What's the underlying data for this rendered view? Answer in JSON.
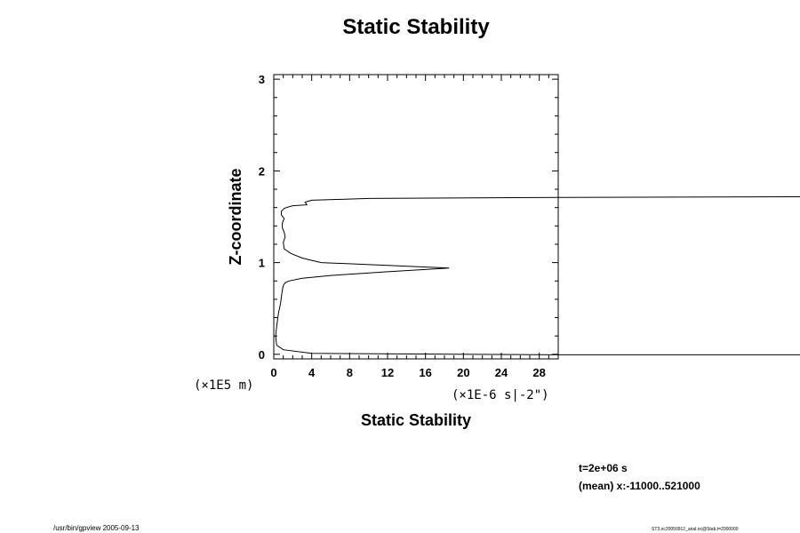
{
  "chart_data": {
    "type": "line",
    "title": "Static Stability",
    "xlabel": "Static Stability",
    "ylabel": "Z-coordinate",
    "x_unit": "(×1E-6 s|-2\")",
    "y_unit": "(×1E5 m)",
    "xlim": [
      0,
      30
    ],
    "ylim": [
      -0.05,
      3.05
    ],
    "x_ticks": [
      "0",
      "4",
      "8",
      "12",
      "16",
      "20",
      "24",
      "28"
    ],
    "y_ticks": [
      "0",
      "1",
      "2",
      "3"
    ],
    "grid": false,
    "series": [
      {
        "x": [
          60.0,
          30.0,
          4.0,
          1.0,
          0.3,
          0.2,
          0.3,
          0.5,
          0.7,
          0.9,
          1.0,
          1.2,
          1.6,
          3.0,
          6.0,
          12.0,
          18.5,
          12.0,
          5.0,
          3.0,
          1.8,
          1.1,
          1.0,
          1.2,
          1.1,
          0.9,
          0.9,
          1.1,
          0.8,
          0.8,
          1.1,
          1.3,
          2.0,
          3.5,
          3.3,
          4.0,
          10.0,
          30.0,
          60.0
        ],
        "y": [
          -0.005,
          -0.005,
          0.01,
          0.05,
          0.1,
          0.2,
          0.3,
          0.45,
          0.55,
          0.7,
          0.75,
          0.78,
          0.8,
          0.83,
          0.86,
          0.9,
          0.94,
          0.97,
          1.0,
          1.05,
          1.1,
          1.15,
          1.22,
          1.28,
          1.33,
          1.38,
          1.43,
          1.48,
          1.52,
          1.56,
          1.59,
          1.6,
          1.62,
          1.63,
          1.66,
          1.68,
          1.7,
          1.71,
          1.72
        ]
      }
    ]
  },
  "info": {
    "time": "t=2e+06 s",
    "mean": "(mean) x:-11000..521000"
  },
  "footer": {
    "left": "/usr/bin/gpview 2005-09-13",
    "right": "ST3.nc20050912_anal.nc@Stab,t=2000000"
  }
}
